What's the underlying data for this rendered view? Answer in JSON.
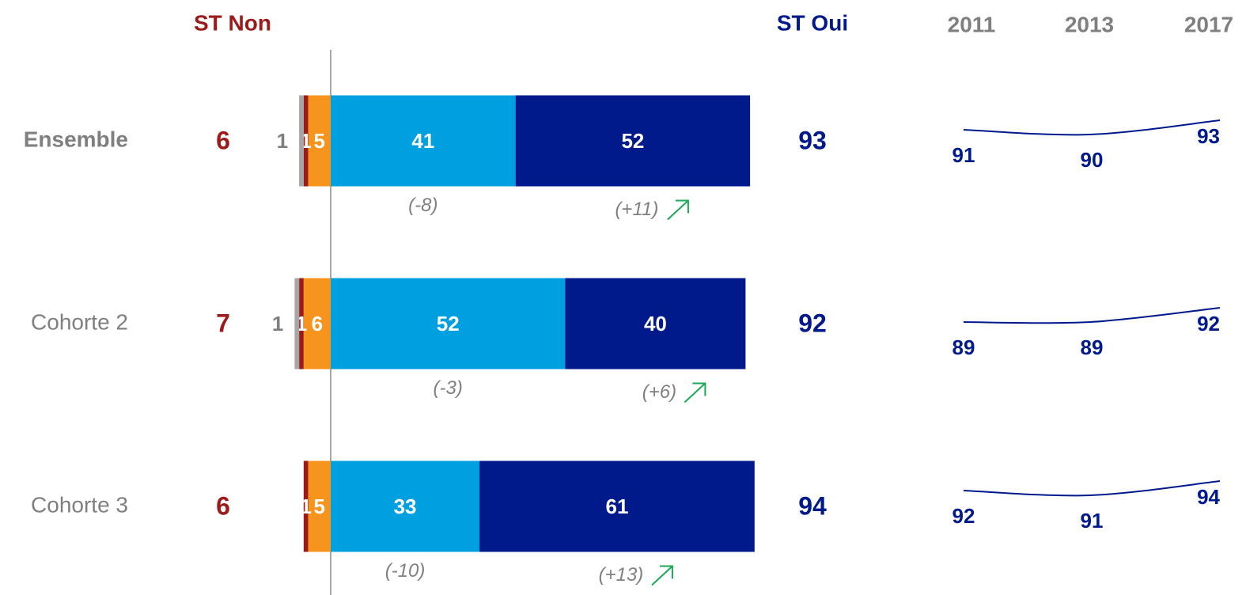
{
  "chart_data": {
    "type": "diverging-bar",
    "headers": {
      "left_total": "ST Non",
      "right_total": "ST Oui"
    },
    "categories": [
      "Ensemble",
      "Cohorte 2",
      "Cohorte 3"
    ],
    "left_totals": [
      6,
      7,
      6
    ],
    "right_totals": [
      93,
      92,
      94
    ],
    "series": [
      {
        "side": "left",
        "color": "#f7941d",
        "values": [
          5,
          6,
          5
        ]
      },
      {
        "side": "left",
        "color": "#9b1b1b",
        "values": [
          1,
          1,
          1
        ]
      },
      {
        "side": "left",
        "color": "#a6a6a6",
        "values": [
          1,
          1,
          null
        ]
      },
      {
        "side": "right",
        "color": "#00a0e0",
        "values": [
          41,
          52,
          33
        ],
        "changes": [
          -8,
          -3,
          -10
        ],
        "change_labels": [
          "(-8)",
          "(-3)",
          "(-10)"
        ]
      },
      {
        "side": "right",
        "color": "#001a8c",
        "values": [
          52,
          40,
          61
        ],
        "changes": [
          11,
          6,
          13
        ],
        "change_labels": [
          "(+11)",
          "(+6)",
          "(+13)"
        ]
      }
    ],
    "trend": {
      "type": "line",
      "x": [
        "2011",
        "2013",
        "2017"
      ],
      "color": "#001a8c",
      "series": [
        [
          91,
          90,
          93
        ],
        [
          89,
          89,
          92
        ],
        [
          92,
          91,
          94
        ]
      ]
    }
  }
}
